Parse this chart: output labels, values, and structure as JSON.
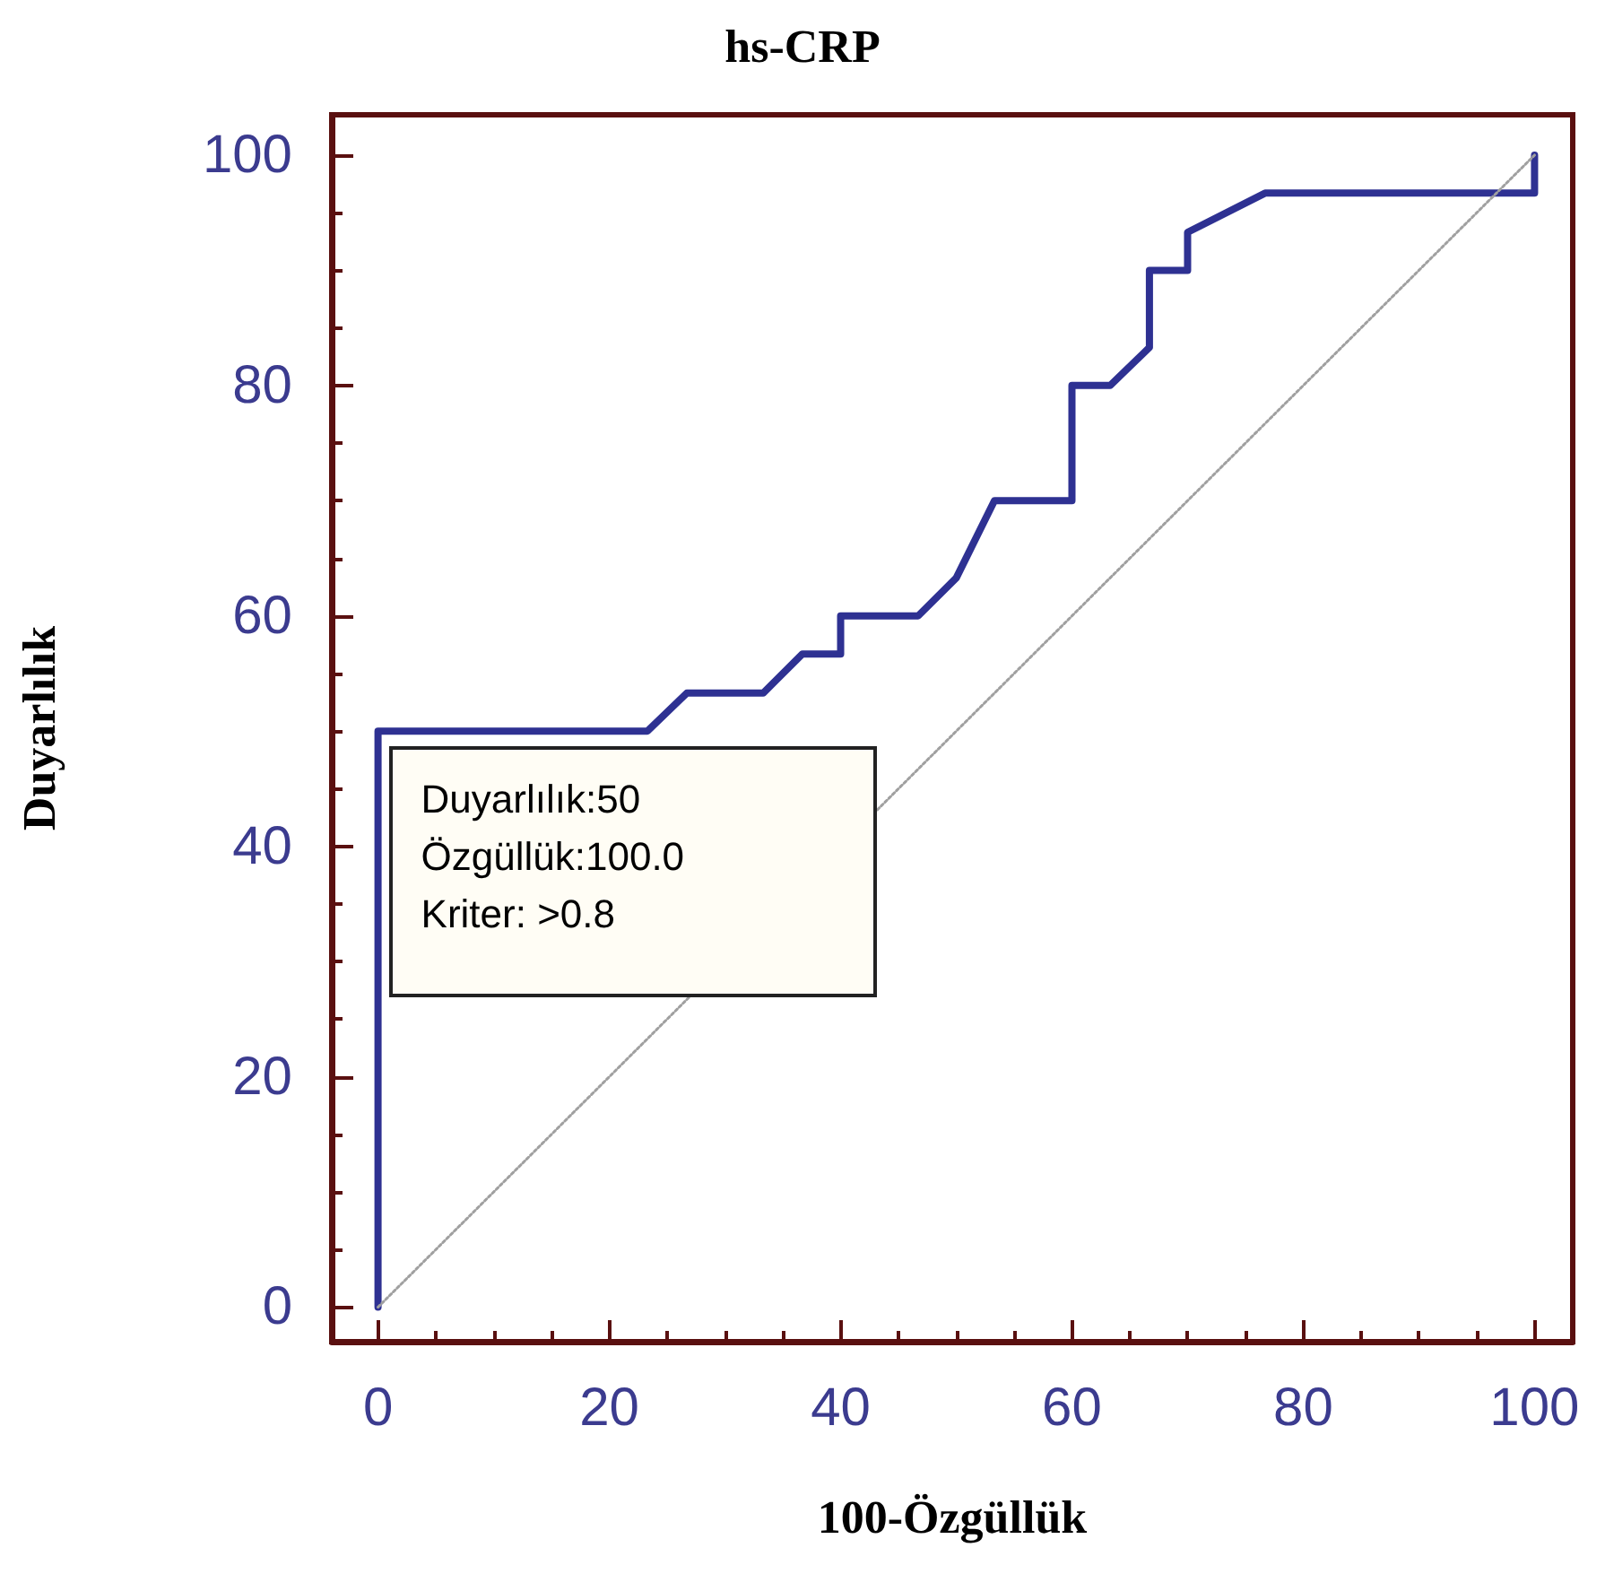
{
  "chart_data": {
    "type": "line",
    "title": "hs-CRP",
    "xlabel": "100-Özgüllük",
    "ylabel": "Duyarlılık",
    "xlim": [
      -4,
      103.3
    ],
    "ylim": [
      -3,
      103.5
    ],
    "xticks": [
      0,
      20,
      40,
      60,
      80,
      100
    ],
    "yticks": [
      0,
      20,
      40,
      60,
      80,
      100
    ],
    "grid": false,
    "marker": "none",
    "series": [
      {
        "color": "#2e3192",
        "line_style": "solid",
        "x": [
          0,
          0,
          23.3,
          26.7,
          33.3,
          36.7,
          40,
          40,
          46.7,
          50,
          53.3,
          60,
          60,
          63.3,
          66.7,
          66.7,
          70,
          70,
          76.7,
          100,
          100
        ],
        "values": [
          0,
          50,
          50,
          53.3,
          53.3,
          56.7,
          56.7,
          60,
          60,
          63.3,
          70,
          70,
          80,
          80,
          83.3,
          90,
          90,
          93.3,
          96.7,
          96.7,
          100
        ]
      },
      {
        "color": "#a0a0a0",
        "line_style": "dotted",
        "x": [
          0,
          100
        ],
        "values": [
          0,
          100
        ]
      }
    ],
    "annotations": [
      {
        "text": "Duyarlılık:50\nÖzgüllük:100.0\nKriter: >0.8",
        "x": 0,
        "y": 50
      }
    ]
  }
}
